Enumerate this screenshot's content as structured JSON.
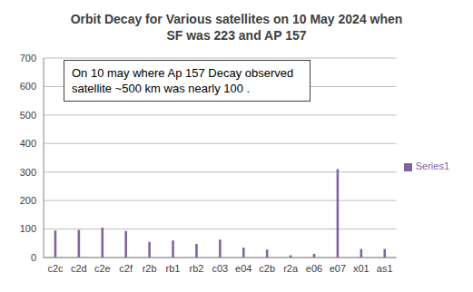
{
  "chart_data": {
    "type": "bar",
    "title": "Orbit Decay for Various satellites on 10 May 2024 when SF was 223 and AP 157",
    "annotation": "On 10 may where Ap 157 Decay observed satellite  ~500 km was nearly 100 .",
    "categories": [
      "c2c",
      "c2d",
      "c2e",
      "c2f",
      "r2b",
      "rb1",
      "rb2",
      "c03",
      "e04",
      "c2b",
      "r2a",
      "e06",
      "e07",
      "x01",
      "as1"
    ],
    "series": [
      {
        "name": "Series1",
        "color": "#8064a2",
        "values": [
          95,
          97,
          105,
          93,
          55,
          60,
          48,
          63,
          35,
          28,
          8,
          13,
          310,
          30,
          30
        ]
      }
    ],
    "ylim": [
      0,
      700
    ],
    "yticks": [
      0,
      100,
      200,
      300,
      400,
      500,
      600,
      700
    ],
    "grid": true,
    "legend": "right"
  }
}
